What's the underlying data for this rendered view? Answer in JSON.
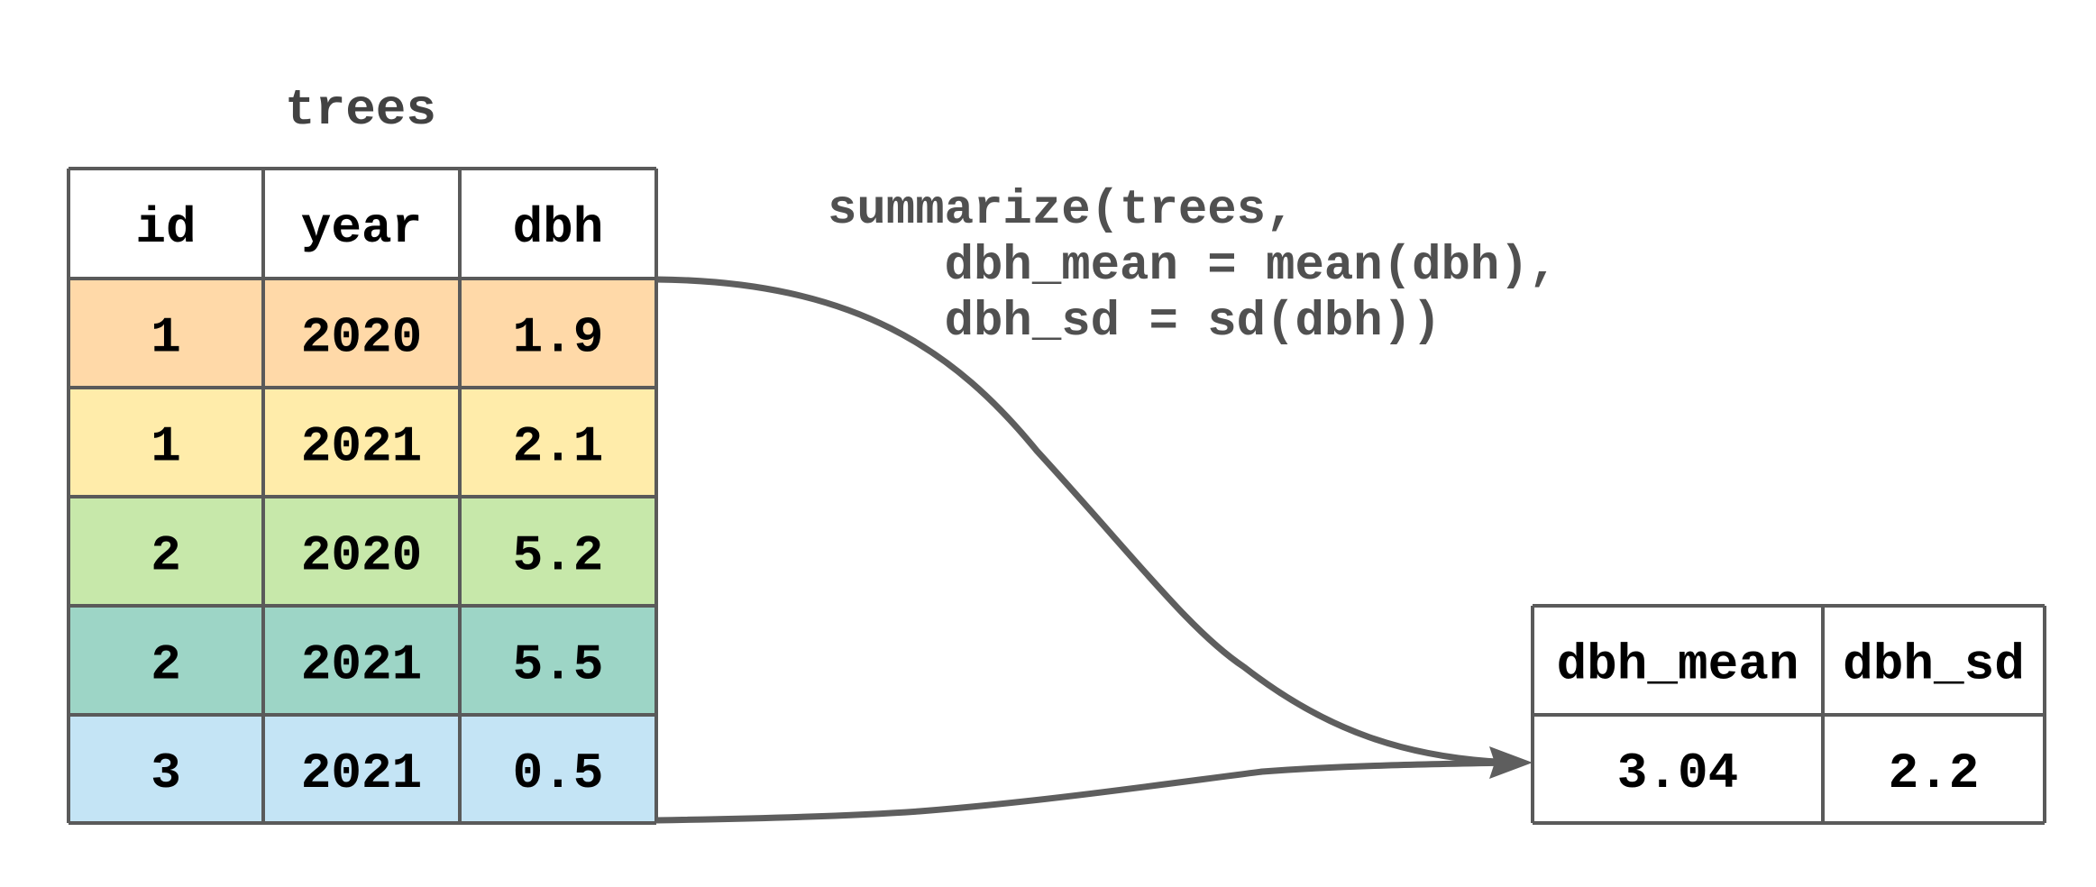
{
  "source_table": {
    "title": "trees",
    "columns": [
      "id",
      "year",
      "dbh"
    ],
    "rows": [
      {
        "cells": [
          "1",
          "2020",
          "1.9"
        ],
        "color": "#ffd9a8"
      },
      {
        "cells": [
          "1",
          "2021",
          "2.1"
        ],
        "color": "#ffecaa"
      },
      {
        "cells": [
          "2",
          "2020",
          "5.2"
        ],
        "color": "#c7e8aa"
      },
      {
        "cells": [
          "2",
          "2021",
          "5.5"
        ],
        "color": "#9dd5c6"
      },
      {
        "cells": [
          "3",
          "2021",
          "0.5"
        ],
        "color": "#c4e4f5"
      }
    ]
  },
  "code": {
    "lines": [
      "summarize(trees,",
      "    dbh_mean = mean(dbh),",
      "    dbh_sd = sd(dbh))"
    ]
  },
  "result_table": {
    "columns": [
      "dbh_mean",
      "dbh_sd"
    ],
    "rows": [
      {
        "cells": [
          "3.04",
          "2.2"
        ]
      }
    ]
  },
  "colors": {
    "grid": "#5a5a5a",
    "arrow": "#5e5e5e",
    "header_background": "#ffffff",
    "code_text": "#505050",
    "title_text": "#424242"
  }
}
